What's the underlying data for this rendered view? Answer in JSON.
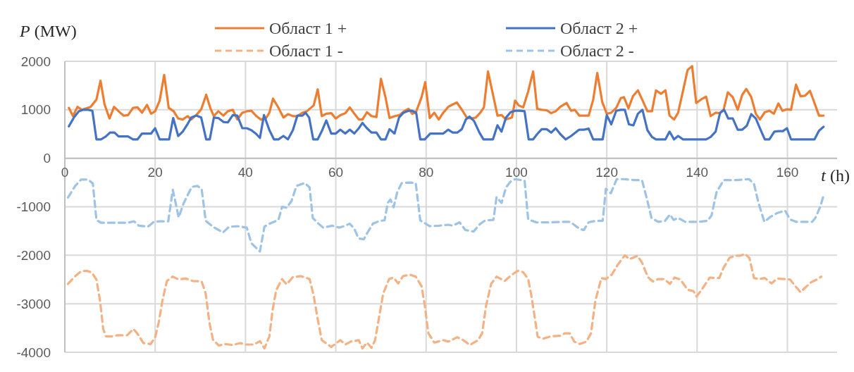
{
  "chart_data": {
    "type": "line",
    "ylabel": "P (MW)",
    "xlabel": "t (h)",
    "xlim": [
      0,
      171
    ],
    "xticks": [
      0,
      20,
      40,
      60,
      80,
      100,
      120,
      140,
      160
    ],
    "ylim": [
      -4000,
      2000
    ],
    "yticks": [
      -4000,
      -3000,
      -2000,
      -1000,
      0,
      1000,
      2000
    ],
    "grid": true,
    "legend": "top",
    "series": [
      {
        "name": "Област 1 +",
        "color": "#ed7d31",
        "line_style": "solid",
        "x": [
          0.9,
          1.8,
          2.8,
          3.8,
          5.7,
          7,
          7.9,
          8.8,
          9.9,
          10.9,
          11.9,
          13,
          14,
          15.1,
          16.1,
          17.1,
          18.2,
          19.1,
          20,
          21,
          22,
          23,
          24.1,
          25.1,
          26.1,
          27.2,
          28,
          29.1,
          30.2,
          31.3,
          32.2,
          33,
          34,
          35.1,
          36.1,
          37.2,
          38.2,
          39.3,
          40.3,
          41.3,
          42.4,
          43.4,
          44.5,
          45.3,
          46.1,
          47.2,
          48.4,
          49.4,
          50.5,
          51.5,
          52.6,
          53.6,
          55.1,
          56,
          56.9,
          57.9,
          59,
          60,
          61,
          62.1,
          63.1,
          64.1,
          65.1,
          65.9,
          66.9,
          67.9,
          69,
          70,
          71,
          71.9,
          73.1,
          74.1,
          75.1,
          76.1,
          76.9,
          77.7,
          79,
          79.8,
          80.8,
          81.8,
          82.8,
          83.8,
          84.9,
          85.9,
          86.8,
          88,
          89,
          90,
          91,
          92,
          92.8,
          93.7,
          94.7,
          95.8,
          96.7,
          97.7,
          99,
          99.7,
          100.5,
          101.5,
          102.6,
          103.7,
          104.6,
          105.6,
          106.7,
          107.7,
          108.7,
          109.7,
          111.1,
          112.1,
          112.9,
          113.9,
          114.9,
          116,
          117,
          117.9,
          119,
          120,
          121,
          122.1,
          123.1,
          123.8,
          124.8,
          125.8,
          126.9,
          127.9,
          129,
          130,
          130.9,
          132,
          133,
          133.9,
          134.9,
          135.8,
          136.9,
          137.9,
          138.9,
          139.8,
          141,
          142,
          143,
          144.1,
          145.1,
          145.9,
          146.8,
          147.9,
          149,
          150,
          150.9,
          152,
          153,
          153.9,
          155,
          156,
          157,
          158,
          158.9,
          159.9,
          160.8,
          161.9,
          162.9,
          163.9,
          165,
          166,
          167,
          168
        ],
        "values": [
          1040,
          870,
          1060,
          1000,
          1060,
          1210,
          1600,
          1110,
          820,
          1060,
          970,
          880,
          890,
          1040,
          1050,
          940,
          1100,
          920,
          970,
          1190,
          1720,
          1040,
          970,
          820,
          800,
          870,
          800,
          890,
          1010,
          1310,
          1040,
          870,
          970,
          880,
          970,
          1000,
          800,
          940,
          970,
          980,
          870,
          800,
          820,
          940,
          1230,
          1060,
          840,
          910,
          870,
          870,
          940,
          970,
          1090,
          1420,
          870,
          920,
          930,
          820,
          890,
          930,
          1050,
          920,
          800,
          800,
          950,
          870,
          850,
          1640,
          1260,
          830,
          870,
          890,
          970,
          1020,
          920,
          940,
          1260,
          1570,
          830,
          940,
          800,
          940,
          1060,
          1110,
          1150,
          990,
          840,
          820,
          840,
          940,
          1050,
          1790,
          1360,
          880,
          890,
          800,
          840,
          1190,
          1090,
          1050,
          1380,
          1790,
          1020,
          1000,
          990,
          930,
          970,
          1060,
          1140,
          980,
          1000,
          880,
          880,
          880,
          1210,
          1760,
          1160,
          920,
          940,
          1040,
          1240,
          1260,
          1030,
          1280,
          1400,
          1200,
          970,
          970,
          1400,
          1330,
          1400,
          880,
          800,
          940,
          1400,
          1820,
          1900,
          1140,
          1220,
          1270,
          870,
          940,
          930,
          1010,
          1360,
          1260,
          1000,
          1310,
          1430,
          1260,
          920,
          800,
          950,
          980,
          920,
          1130,
          980,
          1010,
          1000,
          1520,
          1280,
          1290,
          1390,
          1140,
          880,
          880
        ]
      },
      {
        "name": "Област 2 +",
        "color": "#4472c4",
        "line_style": "solid",
        "x": [
          0.9,
          2,
          3.1,
          4.1,
          5.2,
          6.1,
          7,
          8,
          9.1,
          10,
          11,
          11.9,
          13,
          14,
          15.1,
          16.1,
          17.1,
          18.2,
          19.1,
          20,
          21,
          22.1,
          23.1,
          24,
          25.1,
          26.1,
          27.2,
          28,
          29.1,
          30.2,
          31.3,
          32.1,
          33,
          34,
          35.1,
          36.1,
          37.2,
          38.2,
          39.3,
          40.3,
          41.3,
          42.4,
          43.2,
          44.1,
          45.3,
          46.3,
          47.3,
          48.4,
          49.4,
          50.5,
          51.5,
          52.6,
          53.3,
          54.1,
          55,
          56,
          57,
          57.9,
          59,
          60,
          61,
          62.1,
          63.1,
          64.1,
          65.1,
          65.9,
          66.9,
          67.9,
          69,
          70,
          71,
          71.9,
          73,
          74,
          75,
          76.1,
          76.9,
          77.8,
          78.7,
          79.7,
          80.9,
          81.8,
          82.8,
          83.8,
          84.9,
          85.9,
          86.9,
          87.9,
          88.8,
          89.6,
          90.6,
          91.8,
          92.7,
          93.7,
          94.8,
          95.8,
          96.7,
          97.7,
          98.7,
          99.7,
          100.8,
          101.8,
          102.7,
          103.7,
          104.6,
          105.6,
          106.7,
          107.7,
          108.7,
          109.7,
          110.9,
          112.1,
          113.9,
          114.9,
          116,
          117,
          118,
          119.1,
          120,
          121,
          122.1,
          123.1,
          124,
          124.9,
          125.9,
          126.9,
          127.9,
          129,
          130,
          130.9,
          132,
          133,
          133.9,
          134.9,
          135.8,
          136.9,
          142,
          143,
          144.1,
          145.1,
          146,
          146.9,
          147.9,
          149,
          150,
          151,
          152,
          153,
          154,
          155,
          156,
          157.1,
          158,
          159,
          159.9,
          160.8,
          166,
          167,
          168
        ],
        "values": [
          660,
          840,
          970,
          1000,
          1000,
          980,
          390,
          390,
          450,
          530,
          530,
          450,
          450,
          450,
          390,
          390,
          510,
          510,
          510,
          620,
          390,
          390,
          390,
          830,
          460,
          550,
          710,
          840,
          880,
          840,
          390,
          390,
          840,
          830,
          750,
          740,
          890,
          880,
          620,
          620,
          580,
          500,
          420,
          890,
          580,
          390,
          390,
          460,
          390,
          580,
          880,
          880,
          940,
          840,
          390,
          390,
          580,
          780,
          510,
          510,
          590,
          510,
          590,
          510,
          620,
          730,
          620,
          530,
          530,
          390,
          390,
          600,
          510,
          840,
          940,
          980,
          980,
          940,
          390,
          390,
          510,
          510,
          510,
          510,
          590,
          530,
          530,
          600,
          800,
          860,
          770,
          530,
          390,
          390,
          390,
          680,
          550,
          840,
          950,
          980,
          980,
          970,
          390,
          390,
          500,
          600,
          600,
          530,
          620,
          500,
          390,
          460,
          590,
          590,
          610,
          390,
          390,
          390,
          890,
          700,
          980,
          1000,
          1000,
          700,
          680,
          920,
          1000,
          580,
          440,
          390,
          390,
          390,
          550,
          390,
          460,
          390,
          390,
          440,
          550,
          940,
          1000,
          820,
          820,
          590,
          590,
          670,
          910,
          820,
          600,
          390,
          390,
          550,
          560,
          560,
          620,
          390,
          390,
          570,
          650
        ]
      },
      {
        "name": "Област 1 -",
        "color": "#f4b183",
        "line_style": "dashed",
        "x": [
          0.7,
          2.3,
          3.6,
          4.9,
          6,
          7,
          7.8,
          8.5,
          9.1,
          10.6,
          11.7,
          13.8,
          15.2,
          16.1,
          17.4,
          19,
          20,
          20.8,
          21.6,
          22.6,
          23.9,
          25.2,
          26.8,
          28.3,
          30.3,
          31.2,
          32,
          32.8,
          34.1,
          35.6,
          37.2,
          38.8,
          40.1,
          41.9,
          43.2,
          44.2,
          45.3,
          46,
          46.8,
          48.1,
          49.1,
          50.5,
          52.3,
          54.2,
          55.1,
          55.9,
          56.9,
          59,
          61,
          62.1,
          63.3,
          65.1,
          65.9,
          66.9,
          67.9,
          68.7,
          69.5,
          70.5,
          71.8,
          72.8,
          73.8,
          74.9,
          76.4,
          77.7,
          79,
          79.7,
          80.5,
          81.8,
          83.8,
          84.9,
          86.9,
          88.2,
          89.7,
          91.5,
          92.4,
          93.3,
          94.4,
          95.6,
          97.4,
          99,
          100.3,
          101.5,
          102.6,
          103.3,
          104.1,
          104.7,
          105.9,
          107.7,
          109.7,
          110.7,
          111.8,
          112.8,
          114,
          115.5,
          116.5,
          117.5,
          118.8,
          119.8,
          121.1,
          122.4,
          124,
          125,
          126.8,
          127.8,
          129.1,
          130.2,
          131.4,
          132.7,
          134,
          135,
          136.3,
          137.9,
          139.2,
          139.9,
          141,
          142.8,
          144.9,
          145.9,
          147.2,
          148.5,
          149.5,
          150.6,
          151.6,
          152.6,
          153.7,
          155,
          156.5,
          157.7,
          159.3,
          160.6,
          161.6,
          162.9,
          163.9,
          165.2,
          166.5,
          167.5
        ],
        "values": [
          -2590,
          -2430,
          -2330,
          -2320,
          -2360,
          -2500,
          -2940,
          -3520,
          -3670,
          -3670,
          -3650,
          -3650,
          -3520,
          -3620,
          -3810,
          -3830,
          -3690,
          -3380,
          -2940,
          -2530,
          -2440,
          -2500,
          -2480,
          -2530,
          -2540,
          -2790,
          -3380,
          -3740,
          -3860,
          -3830,
          -3850,
          -3810,
          -3840,
          -3840,
          -3770,
          -3920,
          -3670,
          -3130,
          -2720,
          -2490,
          -2600,
          -2450,
          -2430,
          -2490,
          -2830,
          -3270,
          -3750,
          -3890,
          -3750,
          -3840,
          -3780,
          -3750,
          -3920,
          -3800,
          -3910,
          -3750,
          -3320,
          -2790,
          -2490,
          -2460,
          -2580,
          -2430,
          -2400,
          -2440,
          -2640,
          -3030,
          -3610,
          -3800,
          -3750,
          -3780,
          -3690,
          -3750,
          -3850,
          -3750,
          -3610,
          -3030,
          -2590,
          -2440,
          -2530,
          -2400,
          -2320,
          -2350,
          -2490,
          -2830,
          -3310,
          -3680,
          -3720,
          -3670,
          -3660,
          -3610,
          -3610,
          -3780,
          -3830,
          -3780,
          -3610,
          -2930,
          -2470,
          -2490,
          -2400,
          -2200,
          -2000,
          -2080,
          -2010,
          -2150,
          -2450,
          -2540,
          -2490,
          -2490,
          -2590,
          -2460,
          -2500,
          -2710,
          -2740,
          -2850,
          -2710,
          -2460,
          -2470,
          -2250,
          -2050,
          -2010,
          -2010,
          -1970,
          -2060,
          -2470,
          -2490,
          -2470,
          -2580,
          -2480,
          -2490,
          -2500,
          -2620,
          -2760,
          -2670,
          -2560,
          -2500,
          -2440
        ]
      },
      {
        "name": "Област 2 -",
        "color": "#9dc3e6",
        "line_style": "dashed",
        "x": [
          0.7,
          2.3,
          3.6,
          5.2,
          6.2,
          7,
          8,
          9.6,
          11.7,
          13.8,
          15.3,
          16.4,
          18.4,
          19.7,
          21,
          22.9,
          23.9,
          24.6,
          25.2,
          26.3,
          28.1,
          29.4,
          30.3,
          31.2,
          32.8,
          35,
          36.4,
          38.2,
          40.3,
          41.3,
          43.2,
          44.2,
          45.3,
          47.3,
          48.1,
          49.1,
          50.2,
          51.3,
          53.1,
          54.2,
          54.9,
          56.2,
          57.2,
          59.2,
          60.8,
          61.8,
          63.1,
          64.1,
          65,
          66.2,
          66.9,
          68.2,
          69.7,
          70.8,
          71.5,
          72.1,
          72.8,
          73.6,
          74.6,
          76.4,
          77.7,
          78.7,
          80.8,
          82.8,
          84.9,
          85.9,
          87.4,
          88.7,
          90.5,
          92,
          93.1,
          94.9,
          95.6,
          96.7,
          97.7,
          98.7,
          99.7,
          101.8,
          102.6,
          104.4,
          107.4,
          110.8,
          111.9,
          113.9,
          114.9,
          116,
          117.5,
          119.1,
          119.8,
          120.9,
          122.2,
          123.7,
          126.3,
          127.8,
          128.9,
          129.9,
          131.4,
          132.9,
          134,
          134.8,
          135.8,
          137.4,
          140.2,
          142.3,
          143.2,
          144.3,
          145.9,
          148.5,
          151.5,
          152.6,
          153.6,
          154.9,
          156.2,
          157.7,
          159.5,
          160.6,
          161.9,
          165.5,
          166.2,
          167.3,
          168
        ],
        "values": [
          -810,
          -570,
          -440,
          -440,
          -520,
          -1270,
          -1330,
          -1330,
          -1330,
          -1330,
          -1300,
          -1390,
          -1410,
          -1310,
          -1300,
          -1300,
          -650,
          -950,
          -1220,
          -930,
          -590,
          -570,
          -640,
          -1290,
          -1410,
          -1530,
          -1410,
          -1400,
          -1430,
          -1750,
          -1920,
          -1410,
          -1350,
          -1270,
          -1000,
          -1020,
          -880,
          -570,
          -510,
          -600,
          -1230,
          -1350,
          -1430,
          -1390,
          -1430,
          -1400,
          -1350,
          -1450,
          -1650,
          -1670,
          -1550,
          -1350,
          -1290,
          -1280,
          -920,
          -850,
          -1010,
          -700,
          -510,
          -500,
          -510,
          -1280,
          -1400,
          -1390,
          -1370,
          -1390,
          -1320,
          -1480,
          -1510,
          -1350,
          -1280,
          -1270,
          -800,
          -920,
          -600,
          -480,
          -430,
          -460,
          -1260,
          -1320,
          -1320,
          -1310,
          -1310,
          -1450,
          -1480,
          -1320,
          -1290,
          -1290,
          -630,
          -720,
          -430,
          -430,
          -450,
          -450,
          -840,
          -1230,
          -1310,
          -1290,
          -1160,
          -1270,
          -1230,
          -1310,
          -1310,
          -1290,
          -1180,
          -700,
          -450,
          -450,
          -430,
          -530,
          -920,
          -1310,
          -1210,
          -1130,
          -1080,
          -1260,
          -1310,
          -1310,
          -1230,
          -990,
          -770
        ]
      }
    ]
  }
}
